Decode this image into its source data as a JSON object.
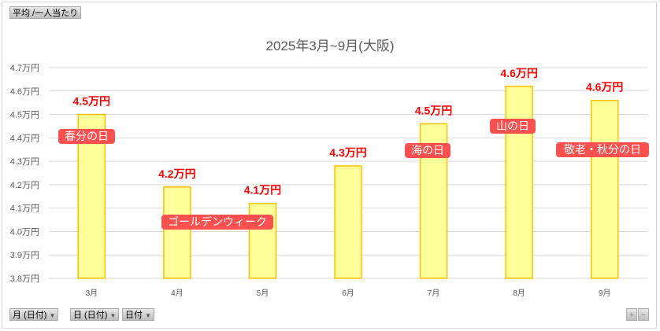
{
  "header": {
    "field_button": "平均 /一人当たり"
  },
  "filters": [
    {
      "label": "月 (日付)",
      "icon": "filter-dropdown-icon"
    },
    {
      "label": "日 (日付)",
      "icon": "dropdown-icon"
    },
    {
      "label": "日付",
      "icon": "dropdown-icon"
    }
  ],
  "zoom": {
    "plus": "+",
    "minus": "−"
  },
  "colors": {
    "bar_fill": "#ffff99",
    "bar_stroke": "#ffc000",
    "label": "#ff0000",
    "annotation": "#ff5050"
  },
  "chart_data": {
    "type": "bar",
    "title": "2025年3月~9月(大阪)",
    "categories": [
      "3月",
      "4月",
      "5月",
      "6月",
      "7月",
      "8月",
      "9月"
    ],
    "values": [
      4.5,
      4.19,
      4.12,
      4.28,
      4.46,
      4.62,
      4.56
    ],
    "data_labels": [
      "4.5万円",
      "4.2万円",
      "4.1万円",
      "4.3万円",
      "4.5万円",
      "4.6万円",
      "4.6万円"
    ],
    "ylim": [
      3.8,
      4.7
    ],
    "yticks": [
      "3.8万円",
      "3.9万円",
      "4.0万円",
      "4.1万円",
      "4.2万円",
      "4.3万円",
      "4.4万円",
      "4.5万円",
      "4.6万円",
      "4.7万円"
    ],
    "grid": true,
    "annotations": [
      {
        "text": "春分の日",
        "category": "3月"
      },
      {
        "text": "ゴールデンウィーク",
        "category": "4月-5月"
      },
      {
        "text": "海の日",
        "category": "7月"
      },
      {
        "text": "山の日",
        "category": "8月"
      },
      {
        "text": "敬老・秋分の日",
        "category": "9月"
      }
    ]
  }
}
